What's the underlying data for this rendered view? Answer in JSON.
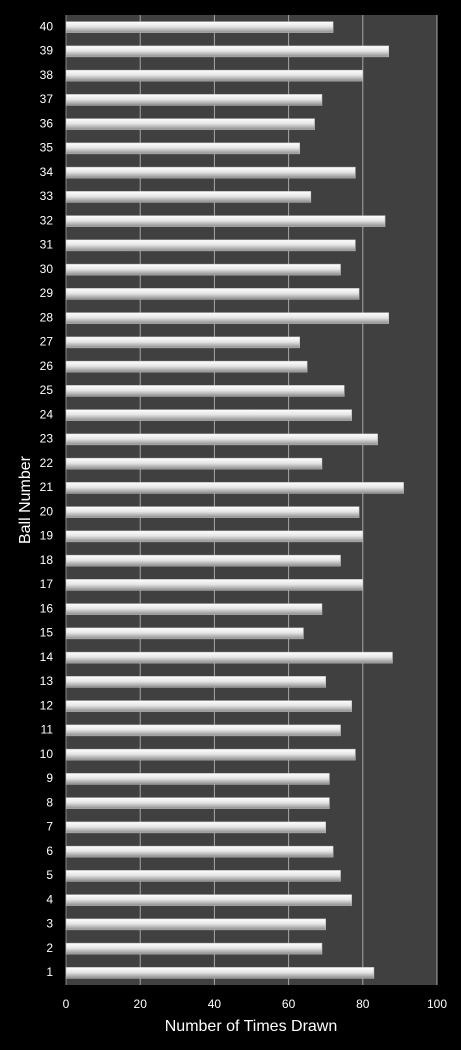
{
  "chart_data": {
    "type": "bar",
    "orientation": "horizontal",
    "x_label": "Number of Times Drawn",
    "y_label": "Ball Number",
    "categories": [
      "1",
      "2",
      "3",
      "4",
      "5",
      "6",
      "7",
      "8",
      "9",
      "10",
      "11",
      "12",
      "13",
      "14",
      "15",
      "16",
      "17",
      "18",
      "19",
      "20",
      "21",
      "22",
      "23",
      "24",
      "25",
      "26",
      "27",
      "28",
      "29",
      "30",
      "31",
      "32",
      "33",
      "34",
      "35",
      "36",
      "37",
      "38",
      "39",
      "40"
    ],
    "values": [
      83,
      69,
      70,
      77,
      74,
      72,
      70,
      71,
      71,
      78,
      74,
      77,
      70,
      88,
      64,
      69,
      80,
      74,
      80,
      79,
      91,
      69,
      84,
      77,
      75,
      65,
      63,
      87,
      79,
      74,
      78,
      86,
      66,
      78,
      63,
      67,
      69,
      80,
      87,
      72
    ],
    "color": "#e6e6e6",
    "xlim": [
      0,
      100
    ],
    "xticks": [
      0,
      20,
      40,
      60,
      80,
      100
    ],
    "grid": true
  }
}
